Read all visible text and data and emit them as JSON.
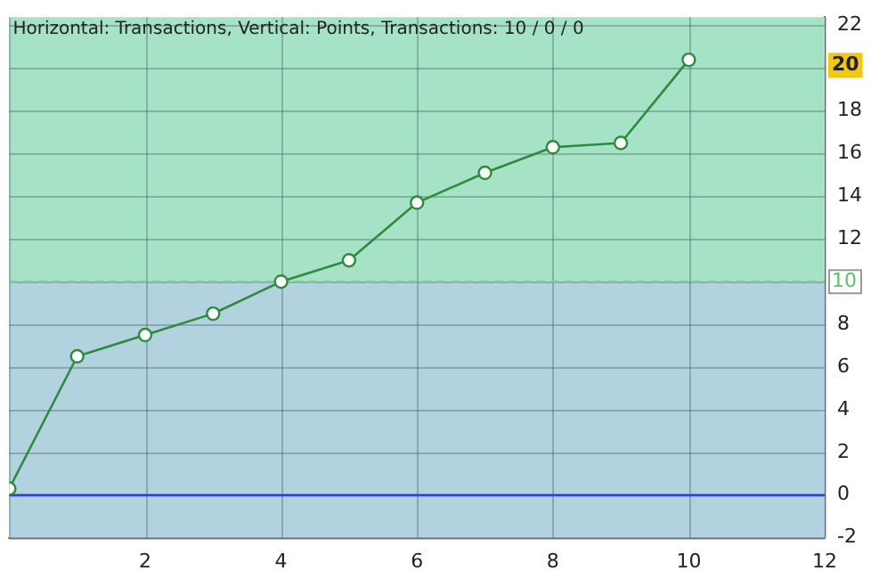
{
  "chart_data": {
    "type": "line",
    "title": "Horizontal: Transactions, Vertical: Points, Transactions: 10 / 0 / 0",
    "x": [
      0,
      1,
      2,
      3,
      4,
      5,
      6,
      7,
      8,
      9,
      10
    ],
    "series": [
      {
        "color": "#2e8b3e",
        "values": [
          0.3,
          6.5,
          7.5,
          8.5,
          10.0,
          11.0,
          13.7,
          15.1,
          16.3,
          16.5,
          20.4
        ]
      }
    ],
    "xlim": [
      0,
      12
    ],
    "xticks": [
      {
        "value": 0,
        "label": null
      },
      2,
      4,
      6,
      8,
      10,
      12
    ],
    "ylim": [
      -2,
      22.4
    ],
    "yticks": [
      -2,
      0,
      2,
      4,
      6,
      8,
      10,
      12,
      14,
      16,
      18,
      20,
      22
    ],
    "bands": [
      {
        "axis": "y",
        "from": 10,
        "to": 22.4,
        "color": "#a6e2c6"
      },
      {
        "axis": "y",
        "from": -2,
        "to": 10,
        "color": "#b2d2e0"
      }
    ],
    "ref_lines": [
      {
        "axis": "y",
        "value": 10,
        "label": "10",
        "color": "#7ccf8c",
        "line_style": "dashed"
      },
      {
        "axis": "y",
        "value": 0,
        "color": "#3344cc",
        "line_style": "solid"
      }
    ],
    "annotations": [
      "20"
    ],
    "grid": true,
    "legend": false,
    "marker": "circle",
    "line_style": "solid"
  }
}
